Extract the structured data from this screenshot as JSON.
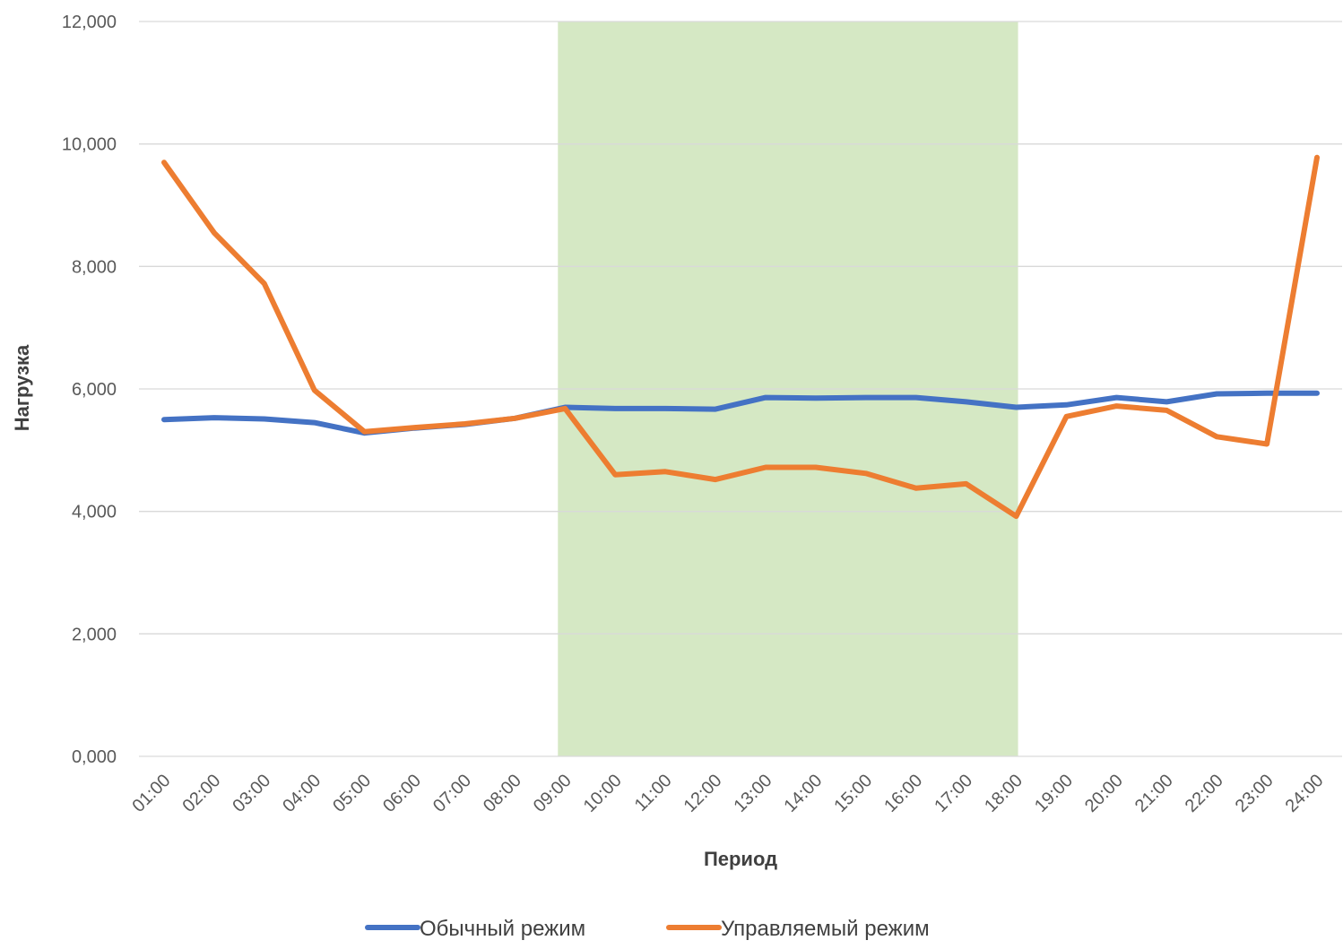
{
  "chart_data": {
    "type": "line",
    "title": "",
    "xlabel": "Период",
    "ylabel": "Нагрузка",
    "ylim": [
      0,
      12
    ],
    "y_ticks": [
      "0,000",
      "2,000",
      "4,000",
      "6,000",
      "8,000",
      "10,000",
      "12,000"
    ],
    "grid": "horizontal",
    "legend_position": "bottom",
    "categories": [
      "01:00",
      "02:00",
      "03:00",
      "04:00",
      "05:00",
      "06:00",
      "07:00",
      "08:00",
      "09:00",
      "10:00",
      "11:00",
      "12:00",
      "13:00",
      "14:00",
      "15:00",
      "16:00",
      "17:00",
      "18:00",
      "19:00",
      "20:00",
      "21:00",
      "22:00",
      "23:00",
      "24:00"
    ],
    "highlight": {
      "from": "09:00",
      "to": "18:00",
      "color": "#d5e8c4"
    },
    "series": [
      {
        "name": "Обычный режим",
        "color": "#4472c4",
        "values": [
          5.5,
          5.53,
          5.51,
          5.45,
          5.28,
          5.36,
          5.42,
          5.52,
          5.7,
          5.68,
          5.68,
          5.67,
          5.86,
          5.85,
          5.86,
          5.86,
          5.79,
          5.7,
          5.74,
          5.86,
          5.79,
          5.92,
          5.93,
          5.93
        ]
      },
      {
        "name": "Управляемый режим",
        "color": "#ed7d31",
        "values": [
          9.7,
          8.55,
          7.72,
          5.98,
          5.3,
          5.37,
          5.43,
          5.52,
          5.68,
          4.6,
          4.65,
          4.52,
          4.72,
          4.72,
          4.62,
          4.38,
          4.45,
          3.92,
          5.55,
          5.72,
          5.65,
          5.22,
          5.1,
          9.78
        ]
      }
    ]
  }
}
